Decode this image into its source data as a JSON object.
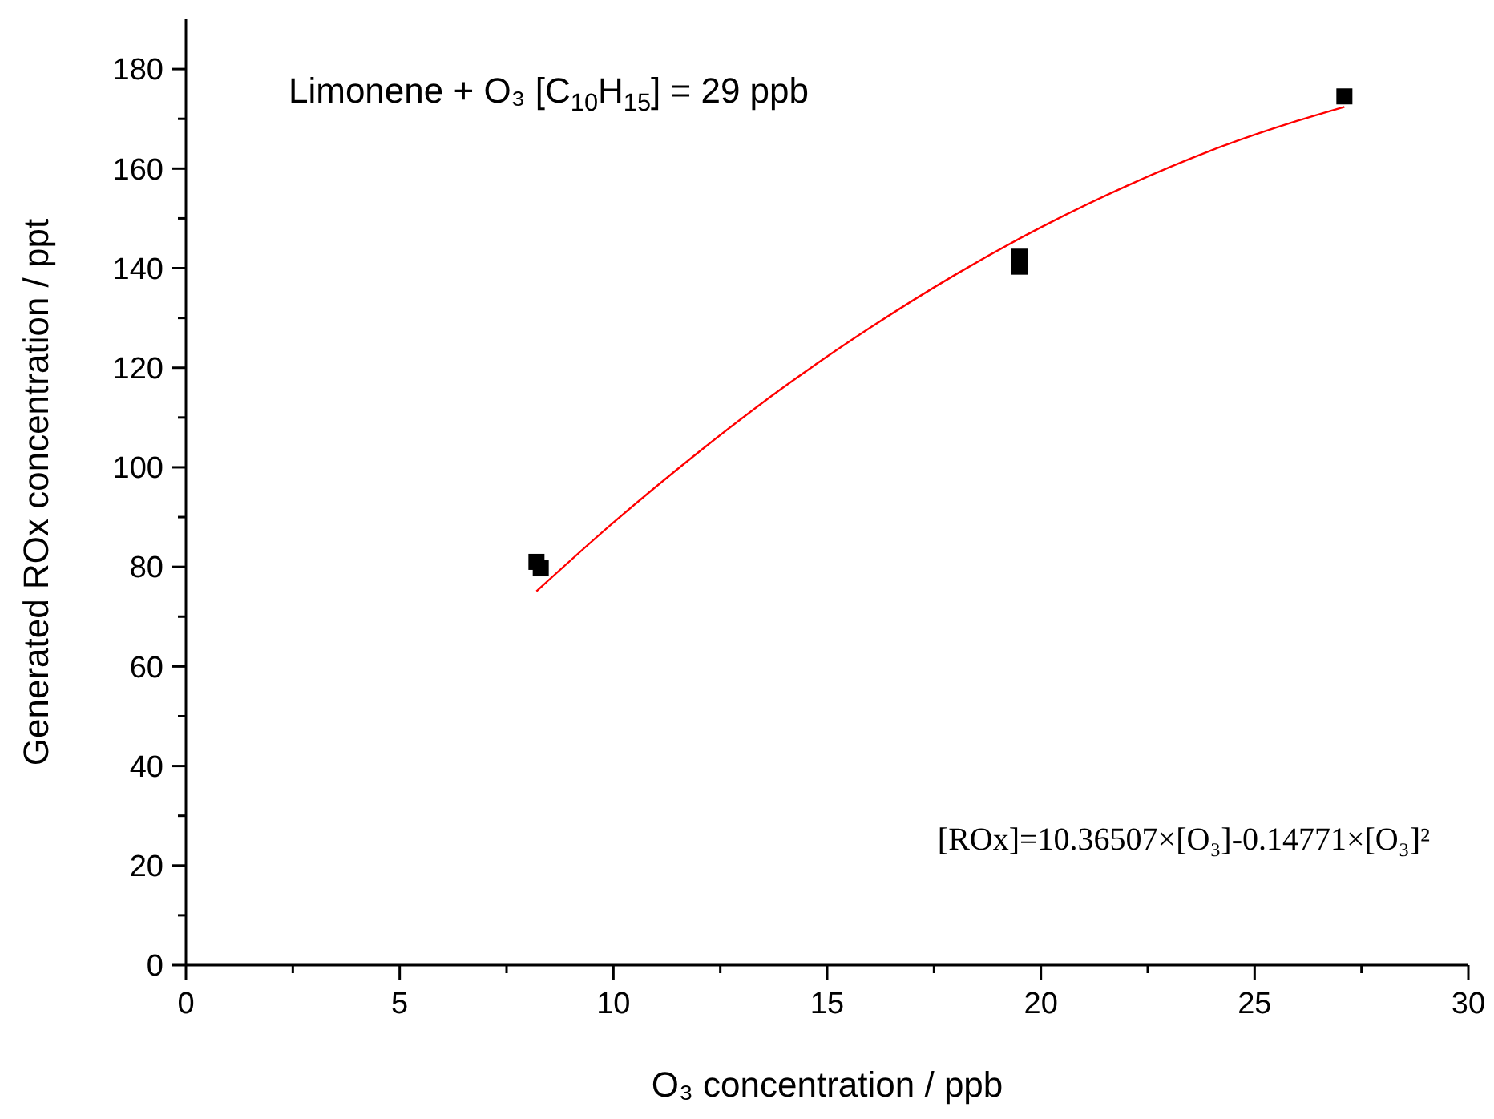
{
  "chart_data": {
    "type": "scatter",
    "title": "Limonene + O₃ [C$_{10}$H$_{15}$] = 29 ppb",
    "xlabel": "O₃ concentration / ppb",
    "ylabel": "Generated ROx concentration / ppt",
    "annotations": [
      "[ROx]=10.36507×[O₃]-0.14771×[O₃]²"
    ],
    "xlim": [
      0,
      30
    ],
    "ylim": [
      0,
      190
    ],
    "xticks": [
      0,
      {
        "value": 2.5,
        "label": null
      },
      5,
      {
        "value": 7.5,
        "label": null
      },
      10,
      {
        "value": 12.5,
        "label": null
      },
      15,
      {
        "value": 17.5,
        "label": null
      },
      20,
      {
        "value": 22.5,
        "label": null
      },
      25,
      {
        "value": 27.5,
        "label": null
      },
      30
    ],
    "yticks": [
      0,
      {
        "value": 10,
        "label": null
      },
      20,
      {
        "value": 30,
        "label": null
      },
      40,
      {
        "value": 50,
        "label": null
      },
      60,
      {
        "value": 70,
        "label": null
      },
      80,
      {
        "value": 90,
        "label": null
      },
      100,
      {
        "value": 110,
        "label": null
      },
      120,
      {
        "value": 130,
        "label": null
      },
      140,
      {
        "value": 150,
        "label": null
      },
      160,
      {
        "value": 170,
        "label": null
      },
      180
    ],
    "grid": false,
    "marker": "square",
    "series": [
      {
        "type": "scatter",
        "color": "#000000",
        "x": [
          8.2,
          8.3,
          19.5,
          19.5,
          27.1
        ],
        "values": [
          81,
          79.7,
          142.3,
          140.3,
          174.5
        ]
      },
      {
        "type": "line",
        "color": "#ff0000",
        "marker": "none",
        "x": [
          8.2,
          10,
          12,
          14,
          16,
          18,
          20,
          22,
          24,
          26,
          27.1
        ],
        "values": [
          75.1,
          88.9,
          103.1,
          116.2,
          128.0,
          138.7,
          148.2,
          156.5,
          163.7,
          169.6,
          172.4
        ]
      }
    ]
  }
}
